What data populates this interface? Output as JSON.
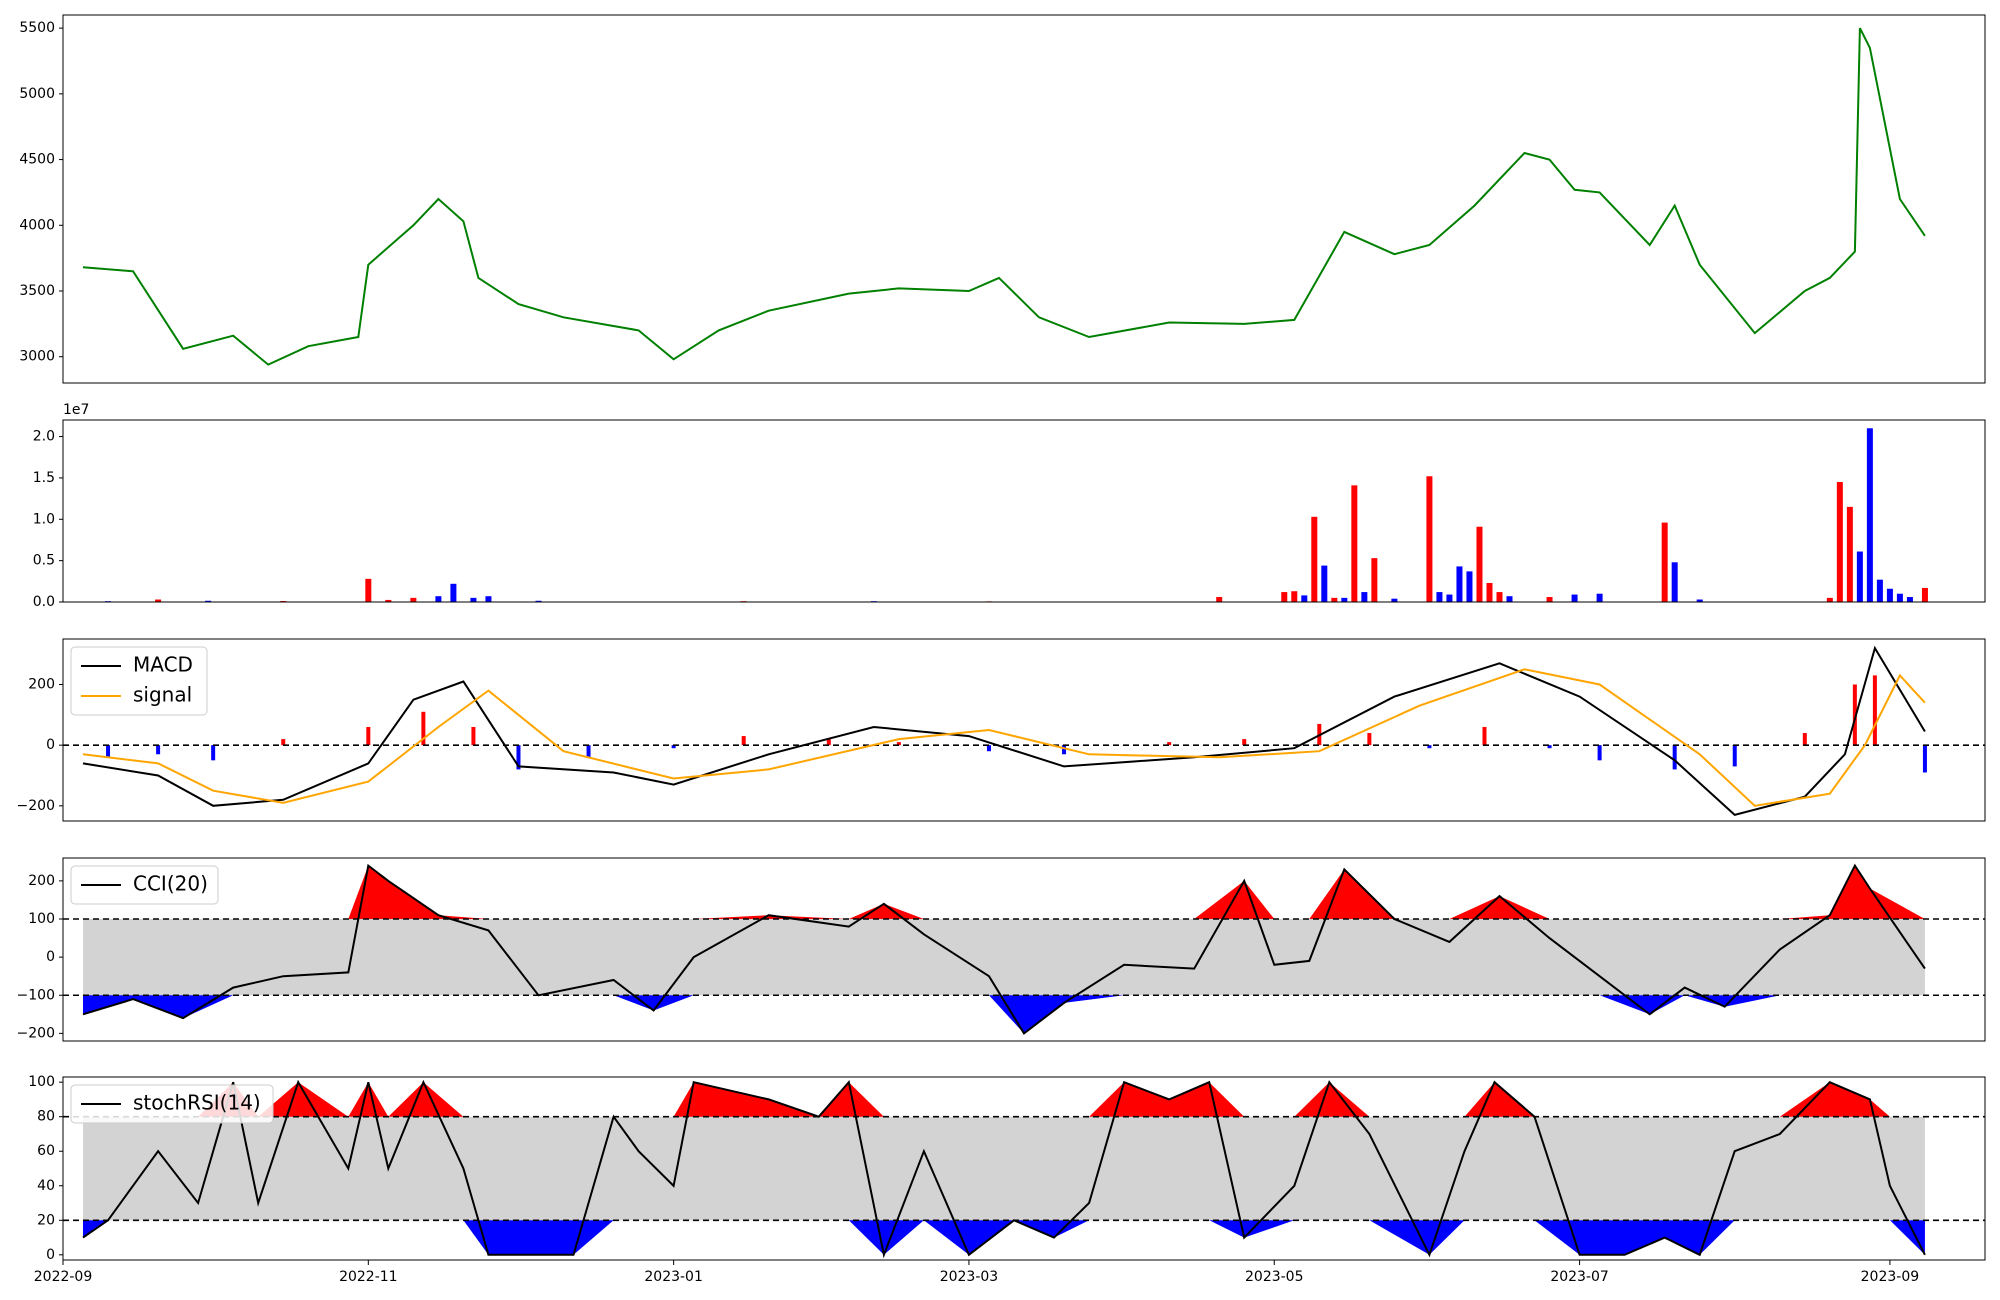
{
  "x_tick_labels": [
    "2022-09",
    "2022-11",
    "2023-01",
    "2023-03",
    "2023-05",
    "2023-07",
    "2023-09"
  ],
  "chart_data": [
    {
      "type": "line",
      "name": "price",
      "ylim": [
        2800,
        5600
      ],
      "yticks": [
        3000,
        3500,
        4000,
        4500,
        5000,
        5500
      ],
      "color": "#008000",
      "x": [
        "2022-09-05",
        "2022-09-15",
        "2022-09-25",
        "2022-10-05",
        "2022-10-12",
        "2022-10-20",
        "2022-10-30",
        "2022-11-01",
        "2022-11-10",
        "2022-11-15",
        "2022-11-20",
        "2022-11-23",
        "2022-12-01",
        "2022-12-10",
        "2022-12-25",
        "2023-01-01",
        "2023-01-10",
        "2023-01-20",
        "2023-02-05",
        "2023-02-15",
        "2023-03-01",
        "2023-03-07",
        "2023-03-15",
        "2023-03-25",
        "2023-04-10",
        "2023-04-25",
        "2023-05-05",
        "2023-05-15",
        "2023-05-25",
        "2023-06-01",
        "2023-06-10",
        "2023-06-20",
        "2023-06-25",
        "2023-06-30",
        "2023-07-05",
        "2023-07-15",
        "2023-07-20",
        "2023-07-25",
        "2023-08-05",
        "2023-08-15",
        "2023-08-20",
        "2023-08-25",
        "2023-08-26",
        "2023-08-28",
        "2023-09-03",
        "2023-09-08"
      ],
      "y": [
        3680,
        3650,
        3060,
        3160,
        2940,
        3080,
        3150,
        3700,
        4000,
        4200,
        4030,
        3600,
        3400,
        3300,
        3200,
        2980,
        3200,
        3350,
        3480,
        3520,
        3500,
        3600,
        3300,
        3150,
        3260,
        3250,
        3280,
        3950,
        3780,
        3850,
        4150,
        4550,
        4500,
        4270,
        4250,
        3850,
        4150,
        3700,
        3180,
        3500,
        3600,
        3800,
        5500,
        5350,
        4200,
        3920
      ]
    },
    {
      "type": "bar",
      "name": "volume",
      "multiplier_label": "1e7",
      "ylim": [
        0,
        22000000
      ],
      "yticks": [
        0,
        0.5,
        1.0,
        1.5,
        2.0
      ],
      "colors": {
        "up": "#ff0000",
        "down": "#0000ff"
      },
      "bars": [
        {
          "date": "2022-09-10",
          "value": 100000,
          "dir": "down"
        },
        {
          "date": "2022-09-20",
          "value": 300000,
          "dir": "up"
        },
        {
          "date": "2022-09-30",
          "value": 150000,
          "dir": "down"
        },
        {
          "date": "2022-10-15",
          "value": 120000,
          "dir": "up"
        },
        {
          "date": "2022-11-01",
          "value": 2800000,
          "dir": "up"
        },
        {
          "date": "2022-11-05",
          "value": 250000,
          "dir": "up"
        },
        {
          "date": "2022-11-10",
          "value": 500000,
          "dir": "up"
        },
        {
          "date": "2022-11-15",
          "value": 700000,
          "dir": "down"
        },
        {
          "date": "2022-11-18",
          "value": 2200000,
          "dir": "down"
        },
        {
          "date": "2022-11-22",
          "value": 500000,
          "dir": "down"
        },
        {
          "date": "2022-11-25",
          "value": 700000,
          "dir": "down"
        },
        {
          "date": "2022-12-05",
          "value": 150000,
          "dir": "down"
        },
        {
          "date": "2023-01-15",
          "value": 100000,
          "dir": "up"
        },
        {
          "date": "2023-02-10",
          "value": 100000,
          "dir": "down"
        },
        {
          "date": "2023-03-05",
          "value": 80000,
          "dir": "up"
        },
        {
          "date": "2023-04-20",
          "value": 600000,
          "dir": "up"
        },
        {
          "date": "2023-05-03",
          "value": 1200000,
          "dir": "up"
        },
        {
          "date": "2023-05-05",
          "value": 1300000,
          "dir": "up"
        },
        {
          "date": "2023-05-07",
          "value": 800000,
          "dir": "down"
        },
        {
          "date": "2023-05-09",
          "value": 10300000,
          "dir": "up"
        },
        {
          "date": "2023-05-11",
          "value": 4400000,
          "dir": "down"
        },
        {
          "date": "2023-05-13",
          "value": 500000,
          "dir": "up"
        },
        {
          "date": "2023-05-15",
          "value": 500000,
          "dir": "down"
        },
        {
          "date": "2023-05-17",
          "value": 14100000,
          "dir": "up"
        },
        {
          "date": "2023-05-19",
          "value": 1200000,
          "dir": "down"
        },
        {
          "date": "2023-05-21",
          "value": 5300000,
          "dir": "up"
        },
        {
          "date": "2023-05-25",
          "value": 400000,
          "dir": "down"
        },
        {
          "date": "2023-06-01",
          "value": 15200000,
          "dir": "up"
        },
        {
          "date": "2023-06-03",
          "value": 1200000,
          "dir": "down"
        },
        {
          "date": "2023-06-05",
          "value": 900000,
          "dir": "down"
        },
        {
          "date": "2023-06-07",
          "value": 4300000,
          "dir": "down"
        },
        {
          "date": "2023-06-09",
          "value": 3700000,
          "dir": "down"
        },
        {
          "date": "2023-06-11",
          "value": 9100000,
          "dir": "up"
        },
        {
          "date": "2023-06-13",
          "value": 2300000,
          "dir": "up"
        },
        {
          "date": "2023-06-15",
          "value": 1200000,
          "dir": "up"
        },
        {
          "date": "2023-06-17",
          "value": 700000,
          "dir": "down"
        },
        {
          "date": "2023-06-25",
          "value": 600000,
          "dir": "up"
        },
        {
          "date": "2023-06-30",
          "value": 900000,
          "dir": "down"
        },
        {
          "date": "2023-07-05",
          "value": 1000000,
          "dir": "down"
        },
        {
          "date": "2023-07-18",
          "value": 9600000,
          "dir": "up"
        },
        {
          "date": "2023-07-20",
          "value": 4800000,
          "dir": "down"
        },
        {
          "date": "2023-07-25",
          "value": 300000,
          "dir": "down"
        },
        {
          "date": "2023-08-20",
          "value": 500000,
          "dir": "up"
        },
        {
          "date": "2023-08-22",
          "value": 14500000,
          "dir": "up"
        },
        {
          "date": "2023-08-24",
          "value": 11500000,
          "dir": "up"
        },
        {
          "date": "2023-08-26",
          "value": 6100000,
          "dir": "down"
        },
        {
          "date": "2023-08-28",
          "value": 21000000,
          "dir": "down"
        },
        {
          "date": "2023-08-30",
          "value": 2700000,
          "dir": "down"
        },
        {
          "date": "2023-09-01",
          "value": 1600000,
          "dir": "down"
        },
        {
          "date": "2023-09-03",
          "value": 1000000,
          "dir": "down"
        },
        {
          "date": "2023-09-05",
          "value": 600000,
          "dir": "down"
        },
        {
          "date": "2023-09-08",
          "value": 1700000,
          "dir": "up"
        }
      ]
    },
    {
      "type": "line",
      "name": "macd",
      "ylim": [
        -250,
        350
      ],
      "yticks": [
        -200,
        0,
        200
      ],
      "legend_location": "top-left",
      "series": [
        {
          "name": "MACD",
          "color": "#000000",
          "x": [
            "2022-09-05",
            "2022-09-20",
            "2022-10-01",
            "2022-10-15",
            "2022-11-01",
            "2022-11-10",
            "2022-11-20",
            "2022-12-01",
            "2022-12-20",
            "2023-01-01",
            "2023-01-20",
            "2023-02-10",
            "2023-03-01",
            "2023-03-20",
            "2023-04-15",
            "2023-05-05",
            "2023-05-25",
            "2023-06-15",
            "2023-07-01",
            "2023-07-20",
            "2023-08-01",
            "2023-08-15",
            "2023-08-23",
            "2023-08-29",
            "2023-09-08"
          ],
          "y": [
            -60,
            -100,
            -200,
            -180,
            -60,
            150,
            210,
            -70,
            -90,
            -130,
            -30,
            60,
            30,
            -70,
            -40,
            -10,
            160,
            270,
            160,
            -50,
            -230,
            -170,
            -30,
            320,
            45
          ]
        },
        {
          "name": "signal",
          "color": "#ffa500",
          "x": [
            "2022-09-05",
            "2022-09-20",
            "2022-10-01",
            "2022-10-15",
            "2022-11-01",
            "2022-11-15",
            "2022-11-25",
            "2022-12-10",
            "2023-01-01",
            "2023-01-20",
            "2023-02-15",
            "2023-03-05",
            "2023-03-25",
            "2023-04-20",
            "2023-05-10",
            "2023-05-30",
            "2023-06-20",
            "2023-07-05",
            "2023-07-25",
            "2023-08-05",
            "2023-08-20",
            "2023-08-27",
            "2023-09-03",
            "2023-09-08"
          ],
          "y": [
            -30,
            -60,
            -150,
            -190,
            -120,
            60,
            180,
            -20,
            -110,
            -80,
            20,
            50,
            -30,
            -40,
            -20,
            130,
            250,
            200,
            -30,
            -200,
            -160,
            0,
            230,
            140
          ]
        }
      ],
      "hist": {
        "colors": {
          "pos": "#ff0000",
          "neg": "#0000ff"
        },
        "x": [
          "2022-09-10",
          "2022-09-20",
          "2022-10-01",
          "2022-10-15",
          "2022-11-01",
          "2022-11-12",
          "2022-11-22",
          "2022-12-01",
          "2022-12-15",
          "2023-01-01",
          "2023-01-15",
          "2023-02-01",
          "2023-02-15",
          "2023-03-05",
          "2023-03-20",
          "2023-04-10",
          "2023-04-25",
          "2023-05-10",
          "2023-05-20",
          "2023-06-01",
          "2023-06-12",
          "2023-06-25",
          "2023-07-05",
          "2023-07-20",
          "2023-08-01",
          "2023-08-15",
          "2023-08-25",
          "2023-08-29",
          "2023-09-08"
        ],
        "y": [
          -40,
          -30,
          -50,
          20,
          60,
          110,
          60,
          -80,
          -40,
          -10,
          30,
          20,
          10,
          -20,
          -30,
          10,
          20,
          70,
          40,
          -10,
          60,
          -10,
          -50,
          -80,
          -70,
          40,
          200,
          230,
          -90
        ]
      }
    },
    {
      "type": "line",
      "name": "cci",
      "ylim": [
        -220,
        260
      ],
      "yticks": [
        -200,
        -100,
        0,
        100,
        200
      ],
      "band": [
        -100,
        100
      ],
      "legend_location": "top-left",
      "series": [
        {
          "name": "CCI(20)",
          "color": "#000000",
          "x": [
            "2022-09-05",
            "2022-09-15",
            "2022-09-25",
            "2022-10-05",
            "2022-10-15",
            "2022-10-28",
            "2022-11-01",
            "2022-11-05",
            "2022-11-15",
            "2022-11-25",
            "2022-12-05",
            "2022-12-20",
            "2022-12-28",
            "2023-01-05",
            "2023-01-20",
            "2023-02-05",
            "2023-02-12",
            "2023-02-20",
            "2023-03-05",
            "2023-03-12",
            "2023-03-20",
            "2023-04-01",
            "2023-04-15",
            "2023-04-25",
            "2023-05-01",
            "2023-05-08",
            "2023-05-15",
            "2023-05-25",
            "2023-06-05",
            "2023-06-15",
            "2023-06-25",
            "2023-07-05",
            "2023-07-15",
            "2023-07-22",
            "2023-07-30",
            "2023-08-10",
            "2023-08-20",
            "2023-08-25",
            "2023-08-28",
            "2023-09-08"
          ],
          "y": [
            -150,
            -110,
            -160,
            -80,
            -50,
            -40,
            240,
            200,
            110,
            70,
            -100,
            -60,
            -140,
            0,
            110,
            80,
            140,
            60,
            -50,
            -200,
            -120,
            -20,
            -30,
            200,
            -20,
            -10,
            230,
            100,
            40,
            160,
            50,
            -50,
            -150,
            -80,
            -130,
            20,
            110,
            240,
            180,
            -30
          ]
        }
      ]
    },
    {
      "type": "line",
      "name": "stochrsi",
      "ylim": [
        -3,
        103
      ],
      "yticks": [
        0,
        20,
        40,
        60,
        80,
        100
      ],
      "band": [
        20,
        80
      ],
      "legend_location": "top-left",
      "series": [
        {
          "name": "stochRSI(14)",
          "color": "#000000",
          "x": [
            "2022-09-05",
            "2022-09-10",
            "2022-09-20",
            "2022-09-28",
            "2022-10-05",
            "2022-10-10",
            "2022-10-18",
            "2022-10-28",
            "2022-11-01",
            "2022-11-05",
            "2022-11-12",
            "2022-11-20",
            "2022-11-25",
            "2022-12-05",
            "2022-12-12",
            "2022-12-20",
            "2022-12-25",
            "2023-01-01",
            "2023-01-05",
            "2023-01-20",
            "2023-01-30",
            "2023-02-05",
            "2023-02-12",
            "2023-02-20",
            "2023-03-01",
            "2023-03-10",
            "2023-03-18",
            "2023-03-25",
            "2023-04-01",
            "2023-04-10",
            "2023-04-18",
            "2023-04-25",
            "2023-05-05",
            "2023-05-12",
            "2023-05-20",
            "2023-06-01",
            "2023-06-08",
            "2023-06-14",
            "2023-06-22",
            "2023-07-01",
            "2023-07-10",
            "2023-07-18",
            "2023-07-25",
            "2023-08-01",
            "2023-08-10",
            "2023-08-20",
            "2023-08-28",
            "2023-09-01",
            "2023-09-08"
          ],
          "y": [
            10,
            20,
            60,
            30,
            100,
            30,
            100,
            50,
            100,
            50,
            100,
            50,
            0,
            0,
            0,
            80,
            60,
            40,
            100,
            90,
            80,
            100,
            0,
            60,
            0,
            20,
            10,
            30,
            100,
            90,
            100,
            10,
            40,
            100,
            70,
            0,
            60,
            100,
            80,
            0,
            0,
            10,
            0,
            60,
            70,
            100,
            90,
            40,
            0
          ]
        }
      ]
    }
  ]
}
